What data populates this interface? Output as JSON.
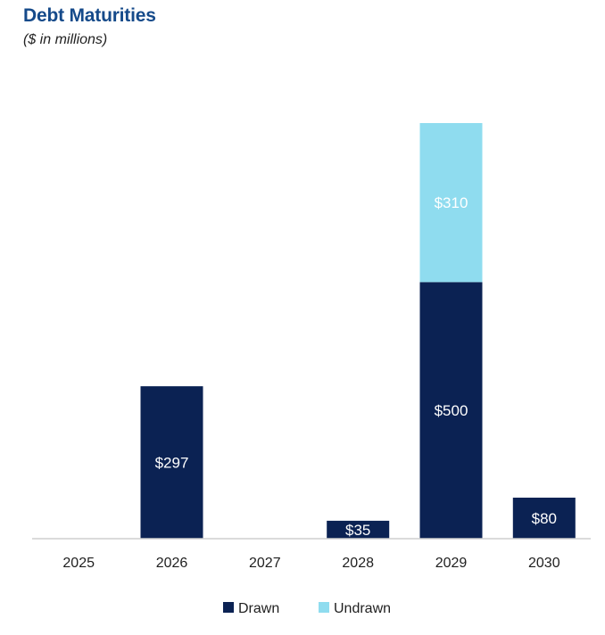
{
  "header": {
    "title": "Debt Maturities",
    "subtitle": "($ in millions)"
  },
  "chart_data": {
    "type": "bar",
    "stacked": true,
    "categories": [
      "2025",
      "2026",
      "2027",
      "2028",
      "2029",
      "2030"
    ],
    "series": [
      {
        "name": "Drawn",
        "color": "#0b2253",
        "values": [
          0,
          297,
          0,
          35,
          500,
          80
        ],
        "labels": [
          "",
          "$297",
          "",
          "$35",
          "$500",
          "$80"
        ]
      },
      {
        "name": "Undrawn",
        "color": "#8fdcef",
        "values": [
          0,
          0,
          0,
          0,
          310,
          0
        ],
        "labels": [
          "",
          "",
          "",
          "",
          "$310",
          ""
        ]
      }
    ],
    "ylim": [
      0,
      810
    ],
    "grid": false,
    "legend": "bottom-center"
  }
}
